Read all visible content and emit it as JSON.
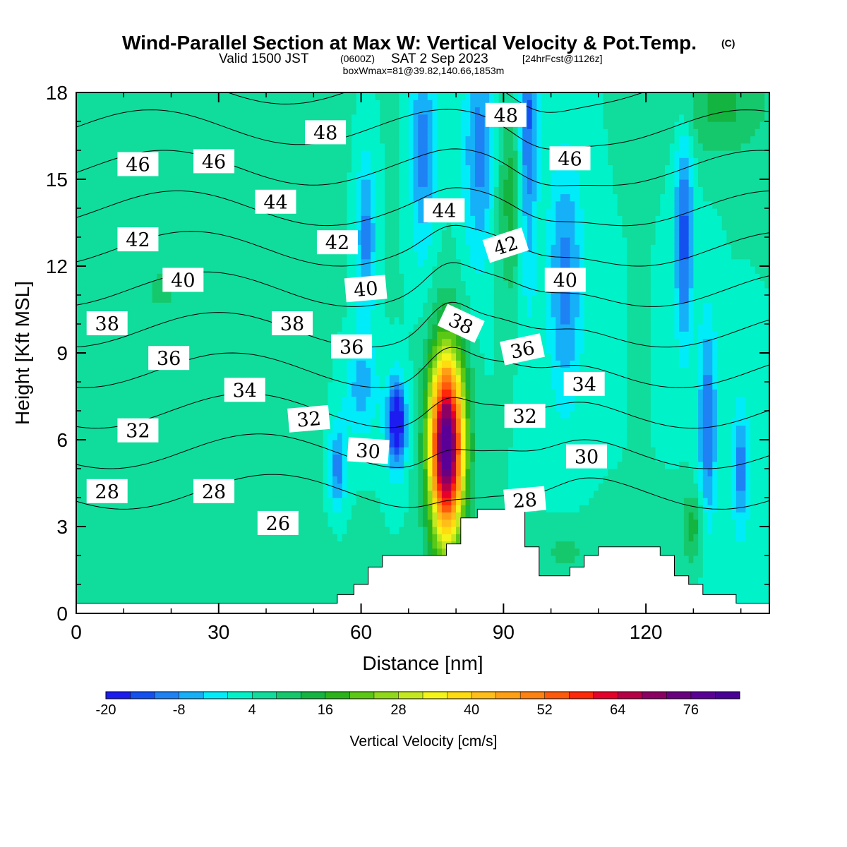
{
  "title": {
    "main": "Wind-Parallel Section at Max W: Vertical Velocity & Pot.Temp.",
    "copyright": "(C)",
    "valid_prefix": "Valid 1500 JST",
    "valid_zulu": "(0600Z)",
    "valid_date": "SAT 2 Sep 2023",
    "forecast": "[24hrFcst@1126z]",
    "box_info": "boxWmax=81@39.82,140.66,1853m"
  },
  "chart_data": {
    "type": "heatmap",
    "xlabel": "Distance [nm]",
    "ylabel": "Height [Kft MSL]",
    "xlim": [
      0,
      146
    ],
    "ylim": [
      0,
      18
    ],
    "x_ticks": [
      0,
      30,
      60,
      90,
      120
    ],
    "y_ticks": [
      0,
      3,
      6,
      9,
      12,
      15,
      18
    ],
    "x_tick_labels": [
      "0",
      "30",
      "60",
      "90",
      "120"
    ],
    "y_tick_labels": [
      "0",
      "3",
      "6",
      "9",
      "12",
      "15",
      "18"
    ],
    "colorbar": {
      "title": "Vertical Velocity [cm/s]",
      "min": -20,
      "max": 84,
      "step": 4,
      "tick_labels": [
        "-20",
        "-8",
        "4",
        "16",
        "28",
        "40",
        "52",
        "64",
        "76"
      ],
      "tick_values": [
        -20,
        -8,
        4,
        16,
        28,
        40,
        52,
        64,
        76
      ],
      "colors": [
        "#1c1cf0",
        "#1450f0",
        "#1e82f5",
        "#16b0f8",
        "#00ecf8",
        "#00f2c8",
        "#10dc9c",
        "#16c86c",
        "#14b440",
        "#2ab41a",
        "#5ac814",
        "#90d81a",
        "#c4e81e",
        "#f4f418",
        "#ffdc10",
        "#ffbe18",
        "#ffa014",
        "#ff8210",
        "#ff5a0c",
        "#ff2808",
        "#e6002a",
        "#b80046",
        "#8c0064",
        "#6a0080",
        "#5a0096",
        "#480096"
      ]
    },
    "terrain_kft": [
      [
        0,
        0.35
      ],
      [
        55,
        0.35
      ],
      [
        55,
        0.65
      ],
      [
        58.5,
        0.65
      ],
      [
        58.5,
        1.0
      ],
      [
        61.5,
        1.0
      ],
      [
        61.5,
        1.6
      ],
      [
        64.5,
        1.6
      ],
      [
        64.5,
        2.0
      ],
      [
        78,
        2.0
      ],
      [
        78,
        2.4
      ],
      [
        81,
        2.4
      ],
      [
        81,
        3.3
      ],
      [
        84.5,
        3.3
      ],
      [
        84.5,
        3.6
      ],
      [
        94.5,
        3.6
      ],
      [
        94.5,
        2.3
      ],
      [
        97.5,
        2.3
      ],
      [
        97.5,
        1.3
      ],
      [
        104,
        1.3
      ],
      [
        104,
        1.6
      ],
      [
        107,
        1.6
      ],
      [
        107,
        2.0
      ],
      [
        110,
        2.0
      ],
      [
        110,
        2.3
      ],
      [
        123,
        2.3
      ],
      [
        123,
        2.0
      ],
      [
        126,
        2.0
      ],
      [
        126,
        1.3
      ],
      [
        129,
        1.3
      ],
      [
        129,
        1.0
      ],
      [
        132,
        1.0
      ],
      [
        132,
        0.65
      ],
      [
        139,
        0.65
      ],
      [
        139,
        0.35
      ],
      [
        146,
        0.35
      ]
    ],
    "velocity_field": {
      "background": 4,
      "features": [
        {
          "x": 78,
          "y": 5.8,
          "sx": 2.6,
          "sy": 2.3,
          "value": 81
        },
        {
          "x": 67.5,
          "y": 6.6,
          "sx": 1.5,
          "sy": 1.1,
          "value": -22
        },
        {
          "x": 92,
          "y": 14.5,
          "sx": 2.6,
          "sy": 2.5,
          "value": 15
        },
        {
          "x": 95,
          "y": 16.5,
          "sx": 1.5,
          "sy": 3.8,
          "value": -16
        },
        {
          "x": 103,
          "y": 11.5,
          "sx": 2.6,
          "sy": 3.0,
          "value": -10
        },
        {
          "x": 128,
          "y": 13,
          "sx": 1.4,
          "sy": 2.6,
          "value": -14
        },
        {
          "x": 133,
          "y": 6.5,
          "sx": 1.4,
          "sy": 2.6,
          "value": -12
        },
        {
          "x": 140,
          "y": 5.0,
          "sx": 1.4,
          "sy": 1.6,
          "value": -10
        },
        {
          "x": 61,
          "y": 13,
          "sx": 1.5,
          "sy": 2.0,
          "value": -10
        },
        {
          "x": 73,
          "y": 16,
          "sx": 1.8,
          "sy": 2.6,
          "value": -10
        },
        {
          "x": 85,
          "y": 16,
          "sx": 2.4,
          "sy": 2.8,
          "value": -10
        },
        {
          "x": 55,
          "y": 5.0,
          "sx": 1.3,
          "sy": 1.1,
          "value": -10
        },
        {
          "x": 60,
          "y": 7.8,
          "sx": 2.6,
          "sy": 1.2,
          "value": -6
        },
        {
          "x": 130,
          "y": 3.0,
          "sx": 1.8,
          "sy": 0.9,
          "value": 14
        },
        {
          "x": 136,
          "y": 17.5,
          "sx": 7.0,
          "sy": 1.2,
          "value": 13
        },
        {
          "x": 18,
          "y": 11.0,
          "sx": 20,
          "sy": 4.0,
          "value": 8
        },
        {
          "x": 22,
          "y": 17.0,
          "sx": 18,
          "sy": 2.0,
          "value": 6
        },
        {
          "x": 48,
          "y": 1.8,
          "sx": 6,
          "sy": 1.2,
          "value": 7
        },
        {
          "x": 103,
          "y": 2.1,
          "sx": 4,
          "sy": 0.6,
          "value": 9
        },
        {
          "x": 116,
          "y": 2.6,
          "sx": 5,
          "sy": 0.6,
          "value": 7
        }
      ]
    },
    "theta_contours": [
      26,
      28,
      30,
      32,
      34,
      36,
      38,
      40,
      42,
      44,
      46,
      48
    ],
    "theta_contour_labels": [
      {
        "text": "48",
        "x": 52.5,
        "y": 16.6,
        "angle": 0
      },
      {
        "text": "48",
        "x": 90.5,
        "y": 17.2,
        "angle": 0
      },
      {
        "text": "46",
        "x": 13,
        "y": 15.5,
        "angle": 0
      },
      {
        "text": "46",
        "x": 29,
        "y": 15.6,
        "angle": 0
      },
      {
        "text": "46",
        "x": 104,
        "y": 15.7,
        "angle": 0
      },
      {
        "text": "44",
        "x": 42,
        "y": 14.2,
        "angle": 0
      },
      {
        "text": "44",
        "x": 77.5,
        "y": 13.9,
        "angle": 0
      },
      {
        "text": "42",
        "x": 13,
        "y": 12.9,
        "angle": 0
      },
      {
        "text": "42",
        "x": 55,
        "y": 12.8,
        "angle": 0
      },
      {
        "text": "42",
        "x": 90.5,
        "y": 12.7,
        "angle": -18
      },
      {
        "text": "40",
        "x": 22.5,
        "y": 11.5,
        "angle": 0
      },
      {
        "text": "40",
        "x": 61,
        "y": 11.2,
        "angle": -5
      },
      {
        "text": "40",
        "x": 103,
        "y": 11.5,
        "angle": 0
      },
      {
        "text": "38",
        "x": 6.5,
        "y": 10.0,
        "angle": 0
      },
      {
        "text": "38",
        "x": 45.5,
        "y": 10.0,
        "angle": 0
      },
      {
        "text": "38",
        "x": 81,
        "y": 10.0,
        "angle": 25
      },
      {
        "text": "36",
        "x": 19.5,
        "y": 8.8,
        "angle": 0
      },
      {
        "text": "36",
        "x": 58,
        "y": 9.2,
        "angle": 0
      },
      {
        "text": "36",
        "x": 94,
        "y": 9.1,
        "angle": -12
      },
      {
        "text": "34",
        "x": 35.5,
        "y": 7.7,
        "angle": 0
      },
      {
        "text": "34",
        "x": 107,
        "y": 7.9,
        "angle": 0
      },
      {
        "text": "32",
        "x": 13,
        "y": 6.3,
        "angle": 0
      },
      {
        "text": "32",
        "x": 49,
        "y": 6.7,
        "angle": -5
      },
      {
        "text": "32",
        "x": 94.5,
        "y": 6.8,
        "angle": 0
      },
      {
        "text": "30",
        "x": 61.5,
        "y": 5.6,
        "angle": 4
      },
      {
        "text": "30",
        "x": 107.5,
        "y": 5.4,
        "angle": 0
      },
      {
        "text": "28",
        "x": 6.5,
        "y": 4.2,
        "angle": 0
      },
      {
        "text": "28",
        "x": 29,
        "y": 4.2,
        "angle": 0
      },
      {
        "text": "28",
        "x": 94.5,
        "y": 3.9,
        "angle": -5
      },
      {
        "text": "26",
        "x": 42.5,
        "y": 3.1,
        "angle": 0
      }
    ]
  }
}
